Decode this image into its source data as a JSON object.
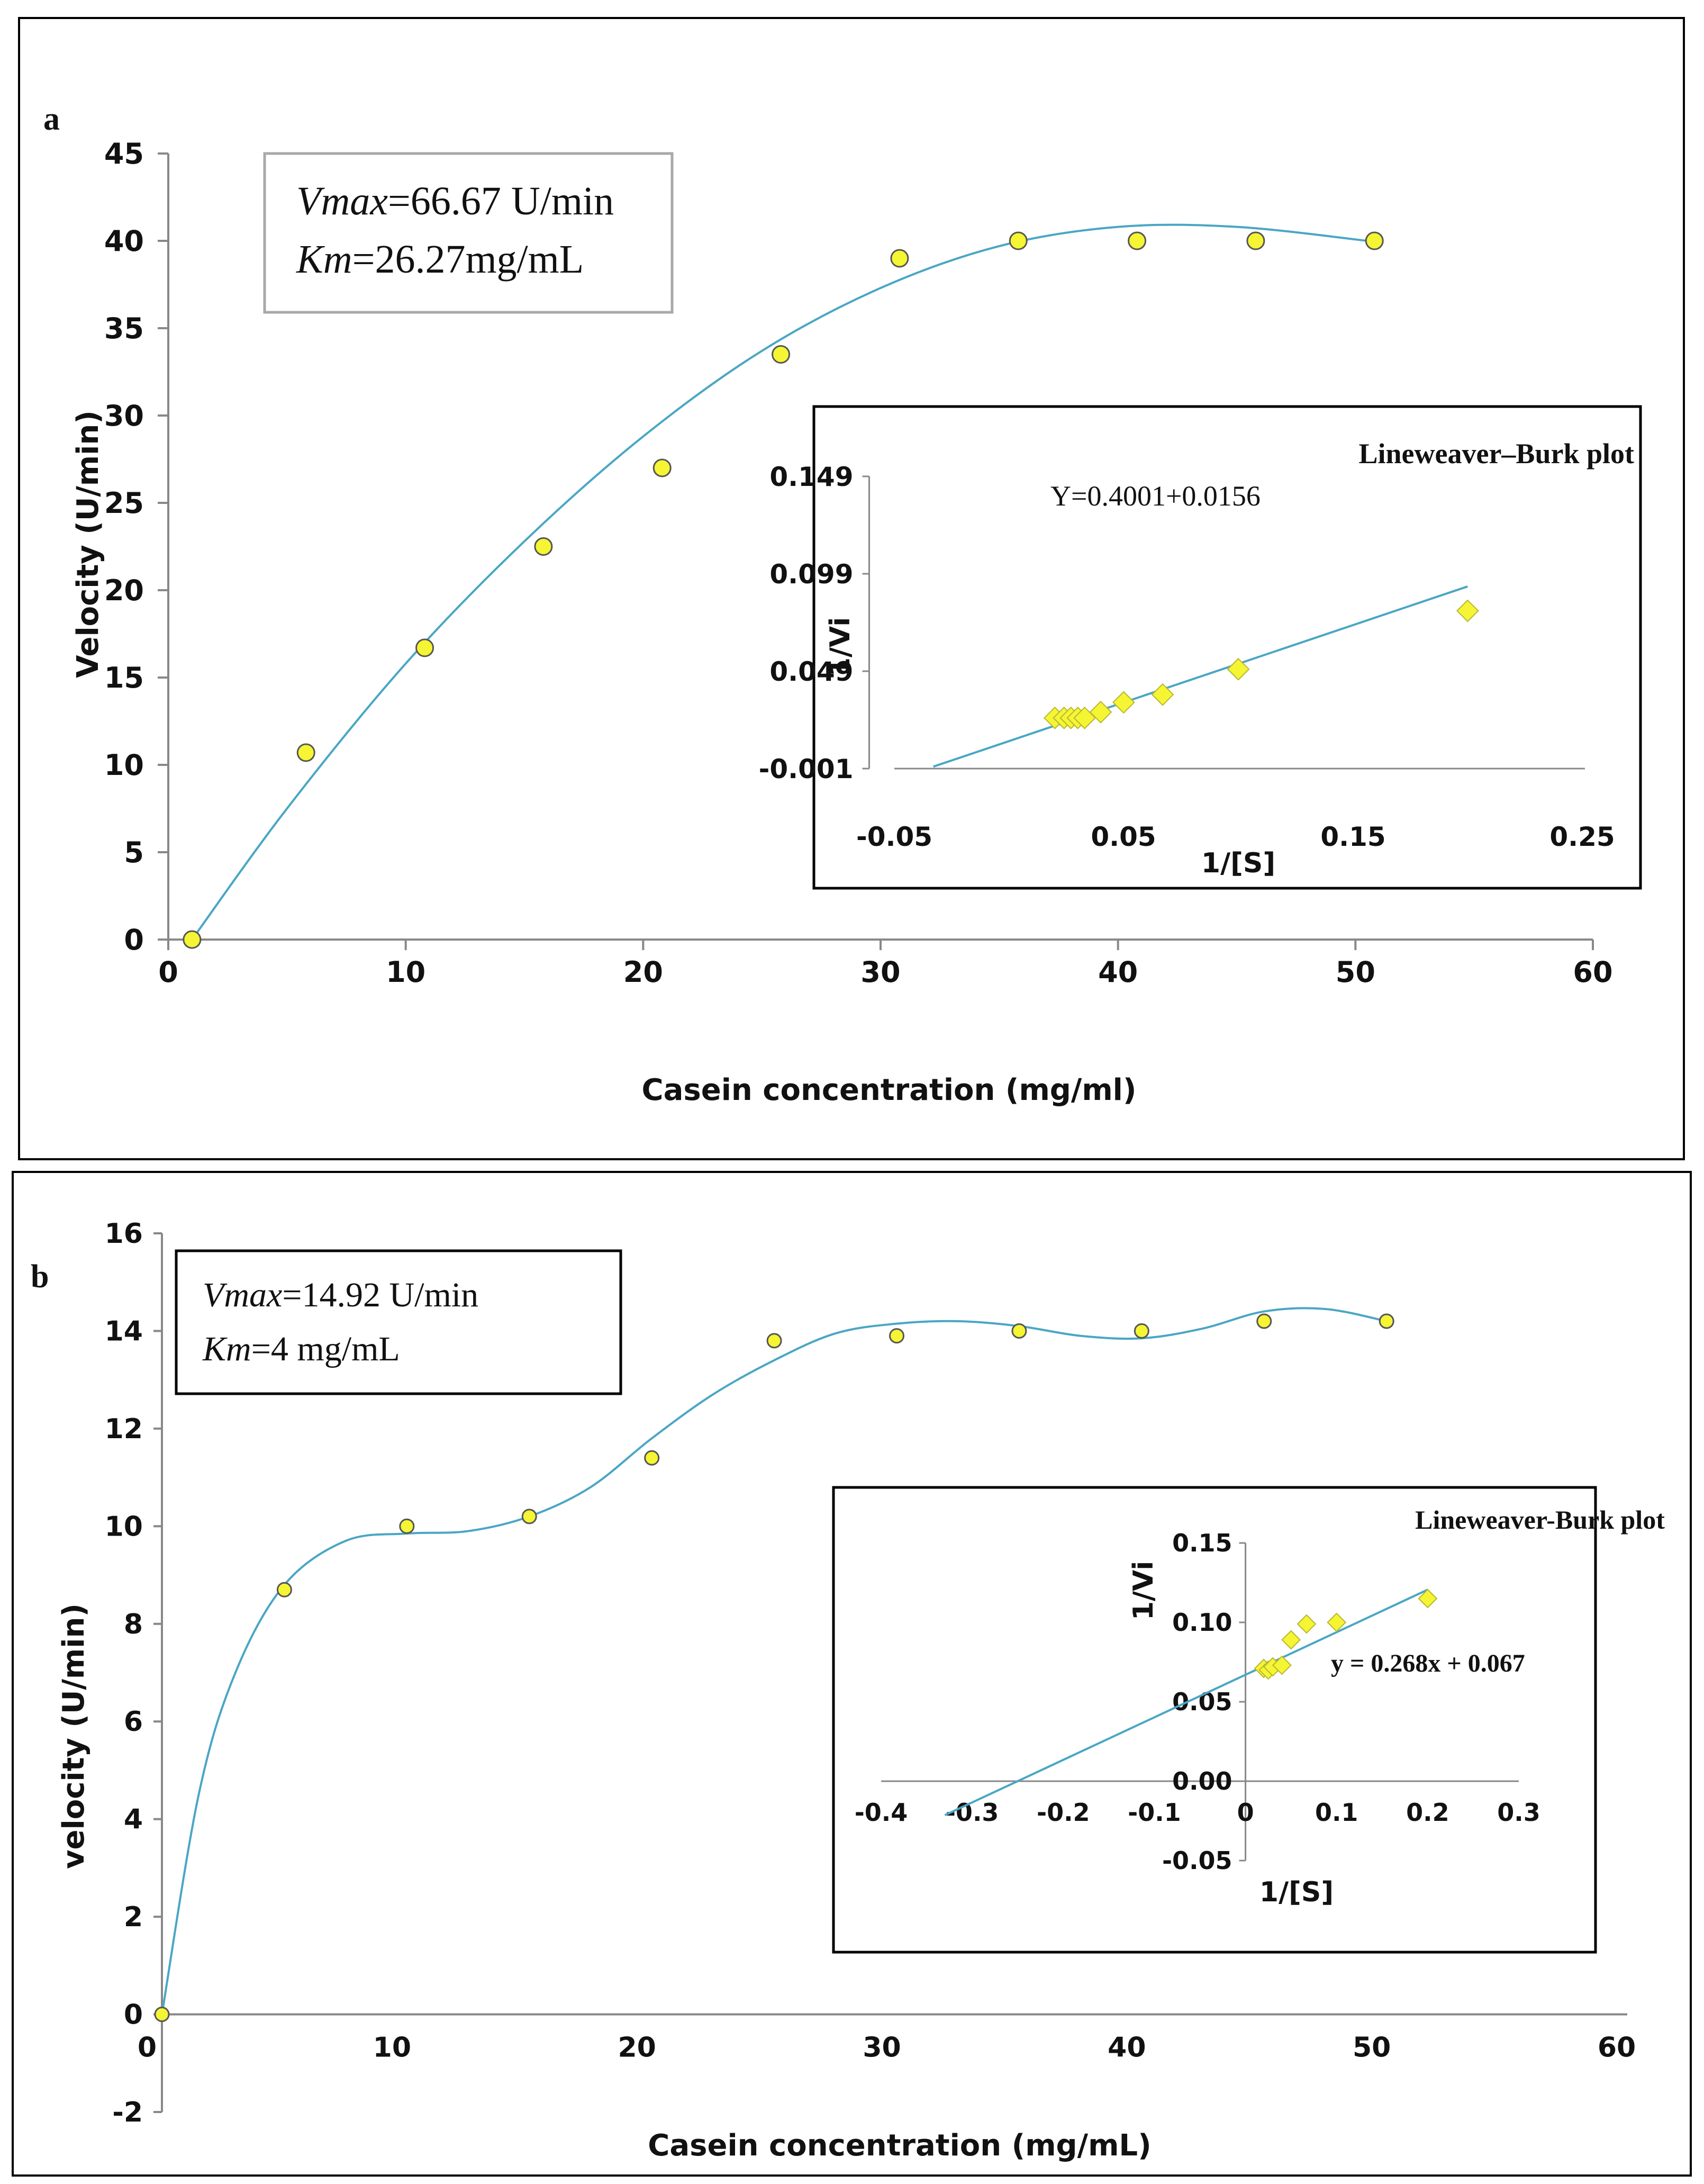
{
  "colors": {
    "curve": "#4aa6c4",
    "marker_fill": "#f5f533",
    "marker_stroke": "#555555",
    "axis": "#888888",
    "frame": "#000000"
  },
  "chart_data": [
    {
      "panel": "a",
      "type": "scatter",
      "xlabel": "Casein concentration (mg/ml)",
      "ylabel": "Velocity (U/min)",
      "xlim": [
        0,
        60
      ],
      "ylim": [
        0,
        45
      ],
      "xticks": [
        "0",
        "10",
        "20",
        "30",
        "40",
        "50",
        "60"
      ],
      "yticks": [
        "0",
        "5",
        "10",
        "15",
        "20",
        "25",
        "30",
        "35",
        "40",
        "45"
      ],
      "points": {
        "x": [
          1,
          5.8,
          10.8,
          15.8,
          20.8,
          25.8,
          30.8,
          35.8,
          40.8,
          45.8,
          50.8
        ],
        "y": [
          0,
          10.7,
          16.7,
          22.5,
          27,
          33.5,
          39,
          40,
          40,
          40,
          40
        ]
      },
      "fit_curve": {
        "x": [
          1,
          5,
          10,
          15,
          20,
          25,
          30,
          35,
          40,
          45,
          50.5
        ],
        "y": [
          0,
          7.5,
          15.8,
          22.8,
          28.8,
          33.7,
          37.3,
          39.7,
          40.8,
          40.8,
          40
        ]
      },
      "legend_box": {
        "line1_italic": "Vmax",
        "line1_rest": "=66.67 U/min",
        "line2_italic": "Km",
        "line2_rest": "=26.27mg/mL"
      },
      "inset": {
        "type": "scatter",
        "title": "Lineweaver–Burk plot",
        "equation": "Y=0.4001+0.0156",
        "xlabel": "1/[S]",
        "ylabel": "1/Vi",
        "xlim": [
          -0.05,
          0.25
        ],
        "ylim": [
          -0.001,
          0.149
        ],
        "xticks": [
          "-0.05",
          "0.05",
          "0.15",
          "0.25"
        ],
        "yticks": [
          "-0.001",
          "0.049",
          "0.099",
          "0.149"
        ],
        "points": {
          "x": [
            0.02,
            0.024,
            0.027,
            0.03,
            0.033,
            0.04,
            0.05,
            0.067,
            0.1,
            0.2
          ],
          "y": [
            0.025,
            0.025,
            0.025,
            0.025,
            0.025,
            0.028,
            0.033,
            0.037,
            0.05,
            0.08
          ]
        },
        "fit_line": {
          "x": [
            -0.033,
            0.2
          ],
          "y": [
            0.0,
            0.0925
          ]
        }
      }
    },
    {
      "panel": "b",
      "type": "scatter",
      "xlabel": "Casein concentration (mg/mL)",
      "ylabel": "velocity (U/min)",
      "xlim": [
        0,
        60
      ],
      "ylim": [
        -2,
        16
      ],
      "xticks": [
        "0",
        "10",
        "20",
        "30",
        "40",
        "50",
        "60"
      ],
      "yticks": [
        "-2",
        "0",
        "2",
        "4",
        "6",
        "8",
        "10",
        "12",
        "14",
        "16"
      ],
      "points": {
        "x": [
          0,
          5,
          10,
          15,
          20,
          25,
          30,
          35,
          40,
          45,
          50
        ],
        "y": [
          0,
          8.7,
          10,
          10.2,
          11.4,
          13.8,
          13.9,
          14,
          14,
          14.2,
          14.2
        ]
      },
      "fit_curve": {
        "x": [
          0,
          1.5,
          3,
          5,
          7.5,
          10,
          12.5,
          15,
          17.5,
          20,
          22.5,
          25,
          27.5,
          30,
          32.5,
          35,
          37.5,
          40,
          42.5,
          45,
          47.5,
          50
        ],
        "y": [
          0,
          4.5,
          7.0,
          8.8,
          9.7,
          9.85,
          9.9,
          10.2,
          10.8,
          11.8,
          12.7,
          13.4,
          13.95,
          14.15,
          14.2,
          14.1,
          13.9,
          13.85,
          14.05,
          14.4,
          14.45,
          14.2
        ]
      },
      "legend_box": {
        "line1_italic": "Vmax",
        "line1_rest": "=14.92 U/min",
        "line2_italic": "Km",
        "line2_rest": "=4 mg/mL"
      },
      "inset": {
        "type": "scatter",
        "title": "Lineweaver-Burk plot",
        "equation": "y = 0.268x + 0.067",
        "xlabel": "1/[S]",
        "ylabel": "1/Vi",
        "xlim": [
          -0.4,
          0.3
        ],
        "ylim": [
          -0.05,
          0.15
        ],
        "xticks": [
          "-0.4",
          "-0.3",
          "-0.2",
          "-0.1",
          "0",
          "0.1",
          "0.2",
          "0.3"
        ],
        "yticks": [
          "-0.05",
          "0.00",
          "0.05",
          "0.10",
          "0.15"
        ],
        "points": {
          "x": [
            0.02,
            0.025,
            0.03,
            0.04,
            0.05,
            0.067,
            0.1,
            0.2
          ],
          "y": [
            0.071,
            0.07,
            0.072,
            0.073,
            0.089,
            0.099,
            0.1,
            0.115
          ]
        },
        "fit_line": {
          "x": [
            -0.33,
            0.2
          ],
          "y": [
            -0.0214,
            0.1206
          ]
        }
      }
    }
  ],
  "panel_labels": [
    "a",
    "b"
  ]
}
